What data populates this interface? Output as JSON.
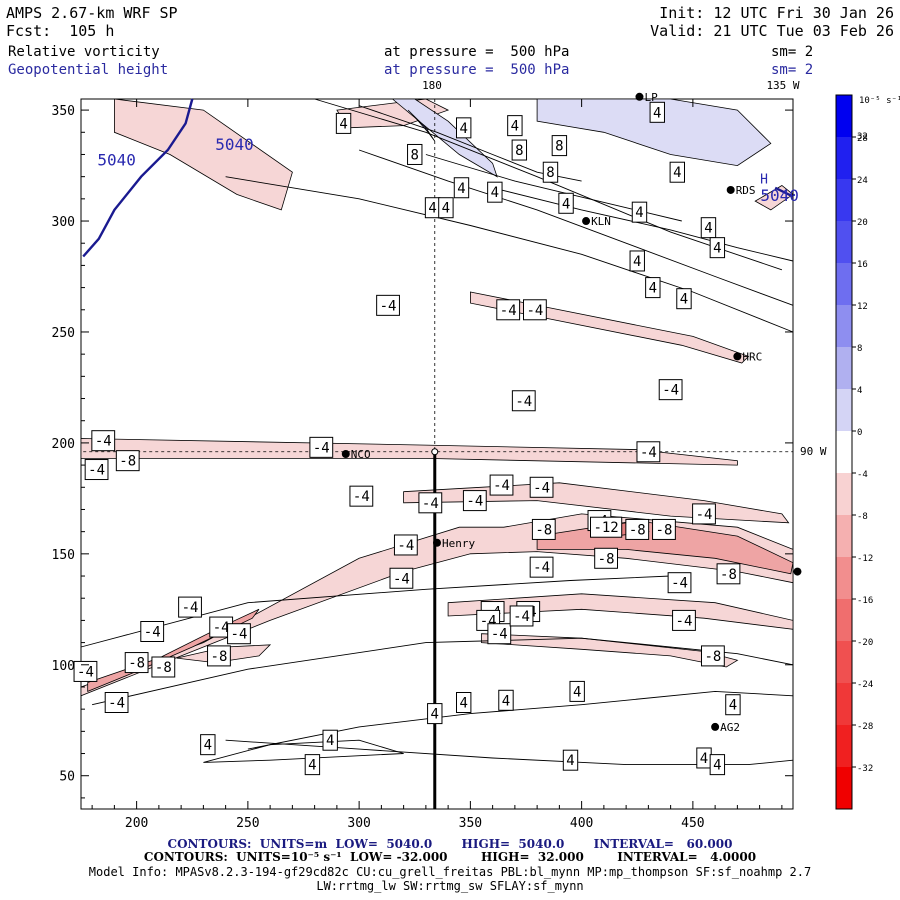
{
  "header": {
    "model": "AMPS 2.67-km WRF SP",
    "forecast": "Fcst:  105 h",
    "init": "Init: 12 UTC Fri 30 Jan 26",
    "valid": "Valid: 21 UTC Tue 03 Feb 26",
    "field1_name": "Relative vorticity",
    "field1_level": "at pressure =  500 hPa",
    "field1_smooth": "sm= 2",
    "field2_name": "Geopotential height",
    "field2_level": "at pressure =  500 hPa",
    "field2_smooth": "sm= 2"
  },
  "map_labels": {
    "top_lon_180": "180",
    "top_lon_135w": "135 W",
    "right_lon_90w": "90 W",
    "stations": [
      {
        "name": "LP",
        "x": 426,
        "y": 356
      },
      {
        "name": "RDS",
        "x": 467,
        "y": 314
      },
      {
        "name": "KLN",
        "x": 402,
        "y": 300
      },
      {
        "name": "HRC",
        "x": 470,
        "y": 239
      },
      {
        "name": "NCO",
        "x": 294,
        "y": 195
      },
      {
        "name": "Henry",
        "x": 335,
        "y": 155
      },
      {
        "name": "AG2",
        "x": 460,
        "y": 72
      },
      {
        "name": "",
        "x": 497,
        "y": 142
      }
    ],
    "section_line": {
      "x": 334,
      "y_from": 35,
      "y_to": 196
    }
  },
  "chart_data": {
    "type": "contour",
    "xlim": [
      175,
      495
    ],
    "ylim": [
      35,
      355
    ],
    "xticks": [
      200,
      250,
      300,
      350,
      400,
      450
    ],
    "yticks": [
      50,
      100,
      150,
      200,
      250,
      300,
      350
    ],
    "vorticity_labels": [
      {
        "x": 293,
        "y": 344,
        "v": "4"
      },
      {
        "x": 347,
        "y": 342,
        "v": "4"
      },
      {
        "x": 370,
        "y": 343,
        "v": "4"
      },
      {
        "x": 434,
        "y": 349,
        "v": "4"
      },
      {
        "x": 325,
        "y": 330,
        "v": "8"
      },
      {
        "x": 372,
        "y": 332,
        "v": "8"
      },
      {
        "x": 390,
        "y": 334,
        "v": "8"
      },
      {
        "x": 386,
        "y": 322,
        "v": "8"
      },
      {
        "x": 443,
        "y": 322,
        "v": "4"
      },
      {
        "x": 346,
        "y": 315,
        "v": "4"
      },
      {
        "x": 361,
        "y": 313,
        "v": "4"
      },
      {
        "x": 393,
        "y": 308,
        "v": "4"
      },
      {
        "x": 333,
        "y": 306,
        "v": "4"
      },
      {
        "x": 339,
        "y": 306,
        "v": "4"
      },
      {
        "x": 426,
        "y": 304,
        "v": "4"
      },
      {
        "x": 457,
        "y": 297,
        "v": "4"
      },
      {
        "x": 461,
        "y": 288,
        "v": "4"
      },
      {
        "x": 425,
        "y": 282,
        "v": "4"
      },
      {
        "x": 432,
        "y": 270,
        "v": "4"
      },
      {
        "x": 446,
        "y": 265,
        "v": "4"
      },
      {
        "x": 313,
        "y": 262,
        "v": "-4"
      },
      {
        "x": 367,
        "y": 260,
        "v": "-4"
      },
      {
        "x": 379,
        "y": 260,
        "v": "-4"
      },
      {
        "x": 440,
        "y": 224,
        "v": "-4"
      },
      {
        "x": 374,
        "y": 219,
        "v": "-4"
      },
      {
        "x": 185,
        "y": 201,
        "v": "-4"
      },
      {
        "x": 283,
        "y": 198,
        "v": "-4"
      },
      {
        "x": 196,
        "y": 192,
        "v": "-8"
      },
      {
        "x": 182,
        "y": 188,
        "v": "-4"
      },
      {
        "x": 430,
        "y": 196,
        "v": "-4"
      },
      {
        "x": 364,
        "y": 181,
        "v": "-4"
      },
      {
        "x": 382,
        "y": 180,
        "v": "-4"
      },
      {
        "x": 301,
        "y": 176,
        "v": "-4"
      },
      {
        "x": 332,
        "y": 173,
        "v": "-4"
      },
      {
        "x": 352,
        "y": 174,
        "v": "-4"
      },
      {
        "x": 408,
        "y": 165,
        "v": "-4"
      },
      {
        "x": 383,
        "y": 161,
        "v": "-8"
      },
      {
        "x": 411,
        "y": 162,
        "v": "-12"
      },
      {
        "x": 425,
        "y": 161,
        "v": "-8"
      },
      {
        "x": 437,
        "y": 161,
        "v": "-8"
      },
      {
        "x": 455,
        "y": 168,
        "v": "-4"
      },
      {
        "x": 321,
        "y": 154,
        "v": "-4"
      },
      {
        "x": 411,
        "y": 148,
        "v": "-8"
      },
      {
        "x": 382,
        "y": 144,
        "v": "-4"
      },
      {
        "x": 319,
        "y": 139,
        "v": "-4"
      },
      {
        "x": 444,
        "y": 137,
        "v": "-4"
      },
      {
        "x": 466,
        "y": 141,
        "v": "-8"
      },
      {
        "x": 360,
        "y": 124,
        "v": "-4"
      },
      {
        "x": 376,
        "y": 124,
        "v": "-4"
      },
      {
        "x": 358,
        "y": 120,
        "v": "-4"
      },
      {
        "x": 446,
        "y": 120,
        "v": "-4"
      },
      {
        "x": 224,
        "y": 126,
        "v": "-4"
      },
      {
        "x": 363,
        "y": 114,
        "v": "-4"
      },
      {
        "x": 373,
        "y": 122,
        "v": "-4"
      },
      {
        "x": 238,
        "y": 117,
        "v": "-4"
      },
      {
        "x": 246,
        "y": 114,
        "v": "-4"
      },
      {
        "x": 207,
        "y": 115,
        "v": "-4"
      },
      {
        "x": 200,
        "y": 101,
        "v": "-8"
      },
      {
        "x": 212,
        "y": 99,
        "v": "-8"
      },
      {
        "x": 237,
        "y": 104,
        "v": "-8"
      },
      {
        "x": 459,
        "y": 104,
        "v": "-8"
      },
      {
        "x": 177,
        "y": 97,
        "v": "-4"
      },
      {
        "x": 191,
        "y": 83,
        "v": "-4"
      },
      {
        "x": 398,
        "y": 88,
        "v": "4"
      },
      {
        "x": 366,
        "y": 84,
        "v": "4"
      },
      {
        "x": 347,
        "y": 83,
        "v": "4"
      },
      {
        "x": 468,
        "y": 82,
        "v": "4"
      },
      {
        "x": 334,
        "y": 78,
        "v": "4"
      },
      {
        "x": 232,
        "y": 64,
        "v": "4"
      },
      {
        "x": 287,
        "y": 66,
        "v": "4"
      },
      {
        "x": 395,
        "y": 57,
        "v": "4"
      },
      {
        "x": 455,
        "y": 58,
        "v": "4"
      },
      {
        "x": 279,
        "y": 55,
        "v": "4"
      },
      {
        "x": 461,
        "y": 55,
        "v": "4"
      }
    ],
    "height_labels": [
      {
        "x": 244,
        "y": 332,
        "v": "5040"
      },
      {
        "x": 191,
        "y": 325,
        "v": "5040"
      },
      {
        "x": 489,
        "y": 309,
        "v": "5040"
      },
      {
        "x": 482,
        "y": 317,
        "v": "H"
      }
    ],
    "colorbar": {
      "unit_label": "10⁻⁵ s⁻¹",
      "ticks": [
        "32",
        "28",
        "24",
        "20",
        "16",
        "12",
        "8",
        "4",
        "0",
        "-4",
        "-8",
        "-12",
        "-16",
        "-20",
        "-24",
        "-28",
        "-32"
      ],
      "colors": [
        "#0000f0",
        "#2020f0",
        "#3838f0",
        "#5050f0",
        "#6e6ef0",
        "#8e8ef0",
        "#b0b0f0",
        "#d4d4f5",
        "#ffffff",
        "#f8d2d2",
        "#f5b0b0",
        "#f28e8e",
        "#f06e6e",
        "#f05050",
        "#f03838",
        "#f02020",
        "#f00000"
      ]
    },
    "pink_band_colors": {
      "weak": "#f6d6d6",
      "mid": "#eea4a4",
      "strong": "#e57f7f"
    },
    "blue_band_colors": {
      "weak": "#dcdcf5",
      "strong": "#8484d8"
    }
  },
  "footer": {
    "contours_height": "CONTOURS:  UNITS=m  LOW=  5040.0       HIGH=  5040.0       INTERVAL=   60.000",
    "contours_vort": "CONTOURS:  UNITS=10⁻⁵ s⁻¹  LOW= -32.000        HIGH=  32.000        INTERVAL=   4.0000",
    "model_info1": "Model Info: MPASv8.2.3-194-gf29cd82c CU:cu_grell_freitas PBL:bl_mynn MP:mp_thompson SF:sf_noahmp 2.7",
    "model_info2": "LW:rrtmg_lw SW:rrtmg_sw SFLAY:sf_mynn"
  }
}
